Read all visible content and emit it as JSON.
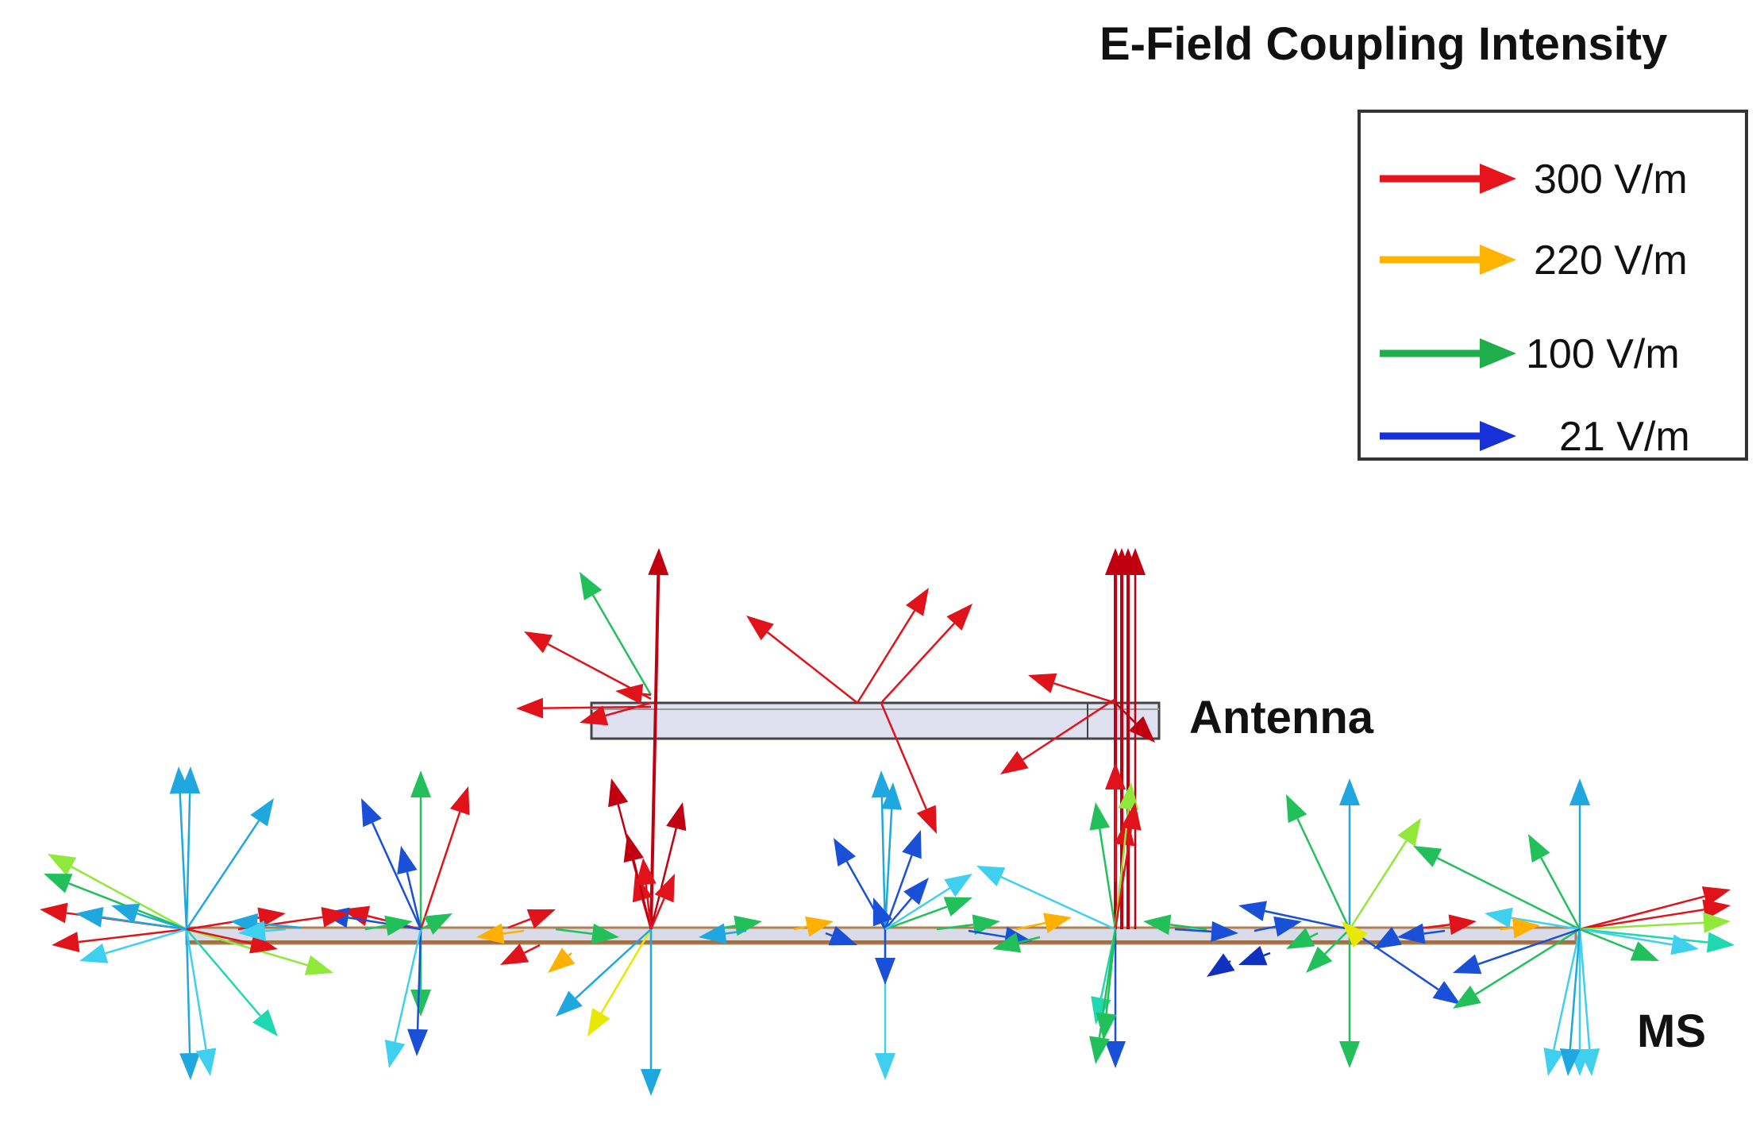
{
  "title": "E-Field Coupling Intensity",
  "legend": [
    {
      "label": "300 V/m",
      "color": "#e8141c"
    },
    {
      "label": "220 V/m",
      "color": "#ffb400"
    },
    {
      "label": "100 V/m",
      "color": "#1fae4b"
    },
    {
      "label": "21 V/m",
      "color": "#1730d8"
    }
  ],
  "labels": {
    "antenna": "Antenna",
    "ms": "MS"
  }
}
